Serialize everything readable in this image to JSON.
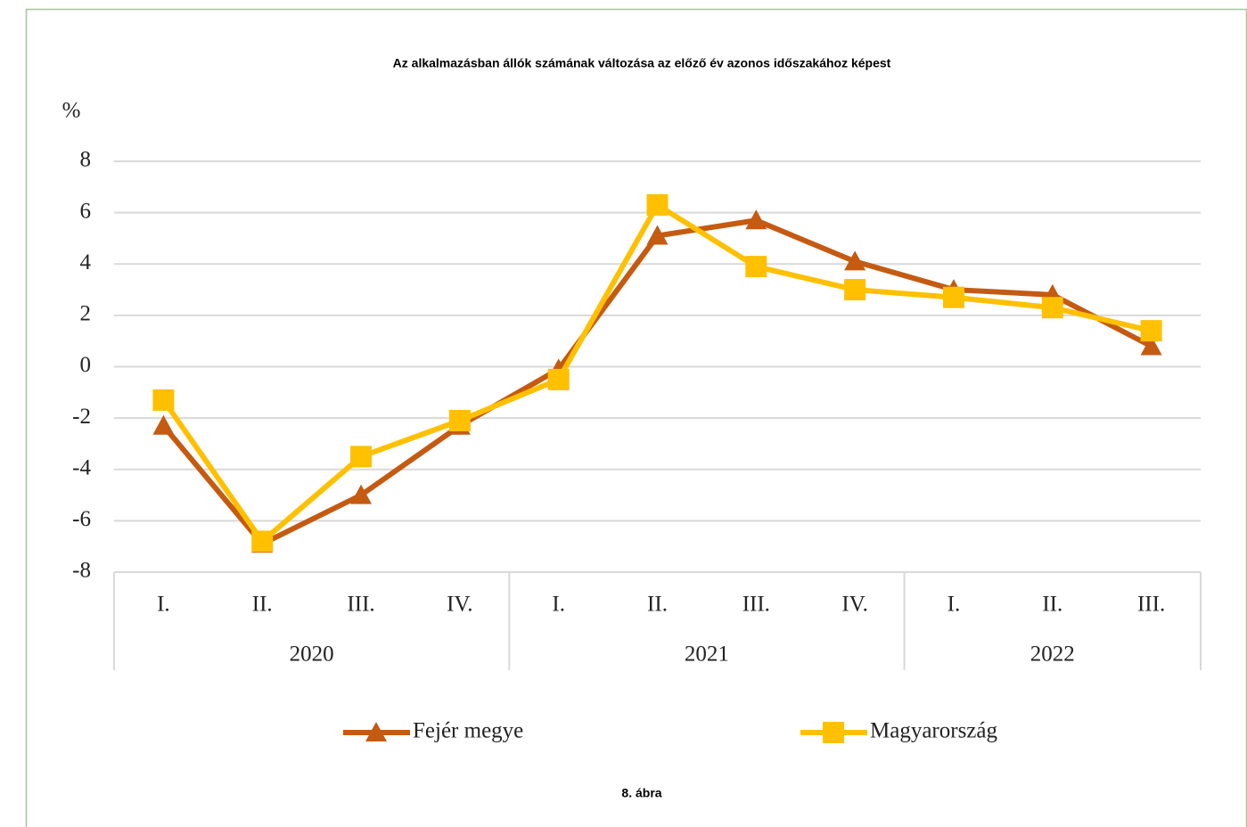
{
  "chart_data": {
    "type": "line",
    "title": "Az alkalmazásban állók számának változása az előző év azonos időszakához képest",
    "y_unit": "%",
    "caption": "8. ábra",
    "category_groups": [
      {
        "label": "2020",
        "categories": [
          "I.",
          "II.",
          "III.",
          "IV."
        ]
      },
      {
        "label": "2021",
        "categories": [
          "I.",
          "II.",
          "III.",
          "IV."
        ]
      },
      {
        "label": "2022",
        "categories": [
          "I.",
          "II.",
          "III."
        ]
      }
    ],
    "series": [
      {
        "name": "Fejér megye",
        "color": "#c55a11",
        "marker": "triangle",
        "values": [
          -2.3,
          -6.9,
          -5.0,
          -2.3,
          -0.1,
          5.1,
          5.7,
          4.1,
          3.0,
          2.8,
          0.8
        ]
      },
      {
        "name": "Magyarország",
        "color": "#ffc000",
        "marker": "square",
        "values": [
          -1.3,
          -6.8,
          -3.5,
          -2.1,
          -0.5,
          6.3,
          3.9,
          3.0,
          2.7,
          2.3,
          1.4
        ]
      }
    ],
    "ylim": [
      -8,
      8
    ],
    "yticks": [
      -8,
      -6,
      -4,
      -2,
      0,
      2,
      4,
      6,
      8
    ],
    "grid": true
  }
}
